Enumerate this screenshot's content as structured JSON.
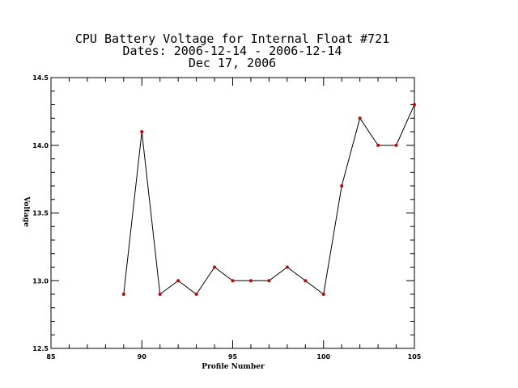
{
  "chart_data": {
    "type": "line",
    "title_lines": [
      "CPU Battery Voltage for Internal Float #721",
      "Dates:  2006-12-14 -  2006-12-14",
      "Dec 17, 2006"
    ],
    "xlabel": "Profile Number",
    "ylabel": "Voltage",
    "xlim": [
      85,
      105
    ],
    "ylim": [
      12.5,
      14.5
    ],
    "xticks": [
      85,
      90,
      95,
      100,
      105
    ],
    "yticks": [
      12.5,
      13.0,
      13.5,
      14.0,
      14.5
    ],
    "xtick_labels": [
      "85",
      "90",
      "95",
      "100",
      "105"
    ],
    "ytick_labels": [
      "12.5",
      "13.0",
      "13.5",
      "14.0",
      "14.5"
    ],
    "grid": false,
    "line_color": "#000000",
    "marker_color": "#cc0000",
    "series": [
      {
        "x": [
          89,
          90,
          91,
          92,
          93,
          94,
          95,
          96,
          97,
          98,
          99,
          100,
          101,
          102,
          103,
          104,
          105
        ],
        "y": [
          12.9,
          14.1,
          12.9,
          13.0,
          12.9,
          13.1,
          13.0,
          13.0,
          13.0,
          13.1,
          13.0,
          12.9,
          13.7,
          14.2,
          14.0,
          14.0,
          14.3
        ]
      }
    ]
  }
}
